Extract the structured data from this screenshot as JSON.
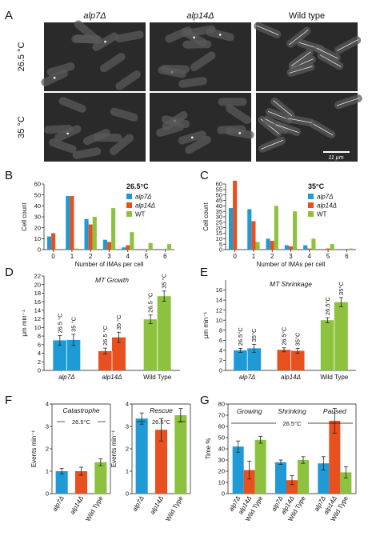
{
  "colors": {
    "alp7": "#1e9bd7",
    "alp14": "#e8501f",
    "wt": "#8dc23f",
    "micro_bg": "#2a2a2a",
    "cell": "#5a5a5a",
    "mt_strand": "#e6e6e6"
  },
  "panel_letters": [
    "A",
    "B",
    "C",
    "D",
    "E",
    "F",
    "G"
  ],
  "micrographs": {
    "columns": [
      "alp7Δ",
      "alp14Δ",
      "Wild type"
    ],
    "rows": [
      "26.5 °C",
      "35 °C"
    ],
    "scale_bar": "11 µm"
  },
  "chart_data": [
    {
      "id": "B",
      "type": "bar",
      "title": "26.5°C",
      "xlabel": "Number of IMAs per cell",
      "ylabel": "Cell count",
      "ylim": [
        0,
        60
      ],
      "yticks": [
        0,
        10,
        20,
        30,
        40,
        50,
        60
      ],
      "categories": [
        "0",
        "1",
        "2",
        "3",
        "4",
        "5",
        "6"
      ],
      "series": [
        {
          "name": "alp7Δ",
          "values": [
            12,
            49,
            28,
            9,
            2,
            0,
            0
          ]
        },
        {
          "name": "alp14Δ",
          "values": [
            15,
            49,
            23,
            7,
            4,
            0,
            0
          ]
        },
        {
          "name": "WT",
          "values": [
            0,
            1,
            30,
            38,
            16,
            6,
            5
          ]
        }
      ],
      "legend": "top-right"
    },
    {
      "id": "C",
      "type": "bar",
      "title": "35°C",
      "xlabel": "Number of IMAs per cell",
      "ylabel": "Cell count",
      "ylim": [
        0,
        60
      ],
      "yticks": [
        0,
        5,
        10,
        15,
        20,
        25,
        30,
        35,
        40,
        45,
        50,
        55,
        60
      ],
      "categories": [
        "0",
        "1",
        "2",
        "3",
        "4",
        "5",
        "6"
      ],
      "series": [
        {
          "name": "alp7Δ",
          "values": [
            38,
            37,
            10,
            4,
            4,
            0,
            0
          ]
        },
        {
          "name": "alp14Δ",
          "values": [
            63,
            26,
            8,
            3,
            1,
            1,
            0
          ]
        },
        {
          "name": "WT",
          "values": [
            0,
            7,
            40,
            35,
            10,
            5,
            1
          ]
        }
      ],
      "legend": "top-right"
    },
    {
      "id": "D",
      "type": "bar",
      "title": "MT Growth",
      "ylabel": "µm min⁻¹",
      "ylim": [
        0,
        22
      ],
      "yticks": [
        0,
        2,
        4,
        6,
        8,
        10,
        12,
        14,
        16,
        18,
        20,
        22
      ],
      "groups": [
        "alp7Δ",
        "alp14Δ",
        "Wild Type"
      ],
      "bar_labels": [
        "26.5 °C",
        "35 °C"
      ],
      "values": [
        [
          7.0,
          7.1
        ],
        [
          4.5,
          7.7
        ],
        [
          11.9,
          17.3
        ]
      ],
      "errors": [
        [
          1.1,
          1.3
        ],
        [
          0.7,
          1.2
        ],
        [
          1.0,
          1.2
        ]
      ]
    },
    {
      "id": "E",
      "type": "bar",
      "title": "MT Shrinkage",
      "ylabel": "µm min⁻¹",
      "ylim": [
        0,
        18
      ],
      "yticks": [
        0,
        2,
        4,
        6,
        8,
        10,
        12,
        14,
        16
      ],
      "groups": [
        "alp7Δ",
        "alp14Δ",
        "Wild Type"
      ],
      "bar_labels": [
        "26.5°C",
        "35°C"
      ],
      "values": [
        [
          4.0,
          4.4
        ],
        [
          4.1,
          3.9
        ],
        [
          10.0,
          13.6
        ]
      ],
      "errors": [
        [
          0.4,
          0.8
        ],
        [
          0.4,
          0.5
        ],
        [
          0.5,
          0.9
        ]
      ]
    },
    {
      "id": "F1",
      "type": "bar",
      "title": "Catastrophe",
      "subtitle": "26.5°C",
      "ylabel": "Events min⁻¹",
      "ylim": [
        0,
        4
      ],
      "yticks": [
        0,
        1,
        2,
        3,
        4
      ],
      "categories": [
        "alp7Δ",
        "alp14Δ",
        "Wild Type"
      ],
      "values": [
        1.0,
        1.0,
        1.4
      ],
      "errors": [
        0.12,
        0.18,
        0.15
      ]
    },
    {
      "id": "F2",
      "type": "bar",
      "title": "Rescue",
      "subtitle": "26.5°C",
      "ylabel": "Events min⁻¹",
      "ylim": [
        0,
        4
      ],
      "yticks": [
        0,
        1,
        2,
        3,
        4
      ],
      "categories": [
        "alp7Δ",
        "alp14Δ",
        "Wild Type"
      ],
      "values": [
        3.35,
        2.85,
        3.5
      ],
      "errors": [
        0.25,
        0.5,
        0.3
      ]
    },
    {
      "id": "G",
      "type": "bar",
      "titles": [
        "Growing",
        "Shrinking",
        "Paused"
      ],
      "subtitle": "26.5°C",
      "ylabel": "Time %",
      "ylim": [
        0,
        80
      ],
      "yticks": [
        0,
        10,
        20,
        30,
        40,
        50,
        60,
        70,
        80
      ],
      "categories": [
        "alp7Δ",
        "alp14Δ",
        "Wild Type"
      ],
      "values": [
        [
          42,
          21,
          48
        ],
        [
          28,
          12,
          30
        ],
        [
          27,
          65,
          19
        ]
      ],
      "errors": [
        [
          5,
          8,
          3
        ],
        [
          2,
          4,
          3
        ],
        [
          6,
          11,
          5
        ]
      ]
    }
  ]
}
